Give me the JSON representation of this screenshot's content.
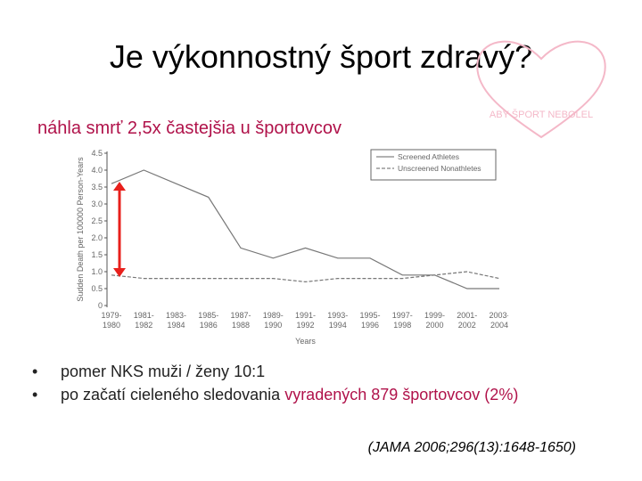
{
  "slide": {
    "title": "Je výkonnostný šport zdravý?",
    "subtitle": "náhla smrť 2,5x častejšia u športovcov",
    "logo_text": "ABY ŠPORT NEBOLEL",
    "bullet_glyph": "•",
    "bullets": [
      {
        "text": "pomer NKS muži / ženy 10:1"
      },
      {
        "text_before": "po začatí cieleného sledovania ",
        "highlight": "vyradených 879 športovcov (2%)"
      }
    ],
    "citation": "(JAMA 2006;296(13):1648-1650)",
    "colors": {
      "accent": "#b0124a",
      "arrow": "#e8201c",
      "logo_pink": "#f4b8c8"
    }
  },
  "chart_data": {
    "type": "line",
    "categories": [
      "1979-1980",
      "1981-1982",
      "1983-1984",
      "1985-1986",
      "1987-1988",
      "1989-1990",
      "1991-1992",
      "1993-1994",
      "1995-1996",
      "1997-1998",
      "1999-2000",
      "2001-2002",
      "2003-2004"
    ],
    "series": [
      {
        "name": "Screened Athletes",
        "style": "solid",
        "values": [
          3.6,
          4.0,
          3.6,
          3.2,
          1.7,
          1.4,
          1.7,
          1.4,
          1.4,
          0.9,
          0.9,
          0.5,
          0.5
        ]
      },
      {
        "name": "Unscreened Nonathletes",
        "style": "dashed",
        "values": [
          0.9,
          0.8,
          0.8,
          0.8,
          0.8,
          0.8,
          0.7,
          0.8,
          0.8,
          0.8,
          0.9,
          1.0,
          0.8
        ]
      }
    ],
    "yticks": [
      "4.5",
      "4.0",
      "3.5",
      "3.0",
      "2.5",
      "2.0",
      "1.5",
      "1.0",
      "0.5",
      "0"
    ],
    "ylim": [
      0,
      4.5
    ],
    "ylabel": "Sudden Death per 100000 Person-Years",
    "xlabel": "Years",
    "legend_position": "top-right",
    "arrow_range": [
      3.5,
      1.0
    ]
  }
}
